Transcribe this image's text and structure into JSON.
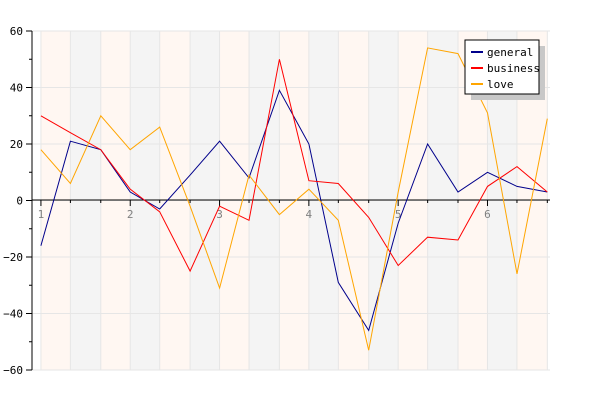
{
  "chart_data": {
    "type": "line",
    "title": "",
    "xlabel": "",
    "ylabel": "",
    "ylim": [
      -60,
      60
    ],
    "y_ticks": [
      "60",
      "40",
      "20",
      "0",
      "−20",
      "−40",
      "−60"
    ],
    "xlim": [
      0.9,
      6.7
    ],
    "x_ticks": [
      "1",
      "2",
      "3",
      "4",
      "5",
      "6"
    ],
    "legend_position": "top-right",
    "grid": true,
    "background": {
      "stripe_colors": [
        "#fff7f2",
        "#f4f4f4"
      ],
      "grid_color": "#e6e6e6"
    },
    "x": [
      1,
      1.33,
      1.67,
      2,
      2.33,
      2.67,
      3,
      3.33,
      3.67,
      4,
      4.33,
      4.67,
      5,
      5.33,
      5.67,
      6,
      6.33,
      6.67
    ],
    "series": [
      {
        "name": "general",
        "color": "#00008b",
        "values": [
          -16,
          21,
          18,
          3,
          -3,
          9,
          21,
          8,
          39,
          20,
          -29,
          -46,
          -8,
          20,
          3,
          10,
          5,
          3
        ]
      },
      {
        "name": "business",
        "color": "#ff0000",
        "values": [
          30,
          24,
          18,
          4,
          -4,
          -25,
          -2,
          -7,
          50,
          7,
          6,
          -6,
          -23,
          -13,
          -14,
          5,
          12,
          3
        ]
      },
      {
        "name": "love",
        "color": "#ffa500",
        "values": [
          18,
          6,
          30,
          18,
          26,
          -2,
          -31,
          9,
          -5,
          4,
          -7,
          -53,
          3,
          54,
          52,
          31,
          -26,
          29
        ]
      }
    ]
  }
}
